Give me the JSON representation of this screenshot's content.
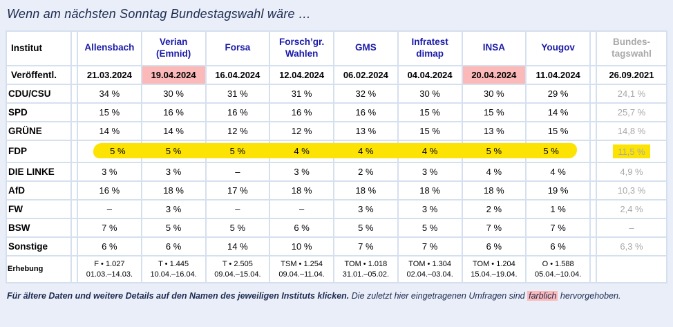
{
  "title": "Wenn am nächsten Sonntag Bundestagswahl wäre …",
  "colors": {
    "page_background": "#e9eef8",
    "institute_link_blue": "#1a1aa8",
    "recent_highlight_pink": "#fcb9b9",
    "marker_yellow": "#fce303",
    "final_column_gray": "#a8a8a8"
  },
  "table": {
    "corner_label": "Institut",
    "institutes": [
      "Allensbach",
      "Verian\n(Emnid)",
      "Forsa",
      "Forsch’gr.\nWahlen",
      "GMS",
      "Infratest\ndimap",
      "INSA",
      "Yougov"
    ],
    "final_header": "Bundes-\ntagswahl",
    "published_label": "Veröffentl.",
    "published": [
      "21.03.2024",
      "19.04.2024",
      "16.04.2024",
      "12.04.2024",
      "06.02.2024",
      "04.04.2024",
      "20.04.2024",
      "11.04.2024"
    ],
    "published_highlight_indexes": [
      1,
      6
    ],
    "published_final": "26.09.2021",
    "rows": [
      {
        "label": "CDU/CSU",
        "values": [
          "34 %",
          "30 %",
          "31 %",
          "31 %",
          "32 %",
          "30 %",
          "30 %",
          "29 %"
        ],
        "final": "24,1 %",
        "highlight": false
      },
      {
        "label": "SPD",
        "values": [
          "15 %",
          "16 %",
          "16 %",
          "16 %",
          "16 %",
          "15 %",
          "15 %",
          "14 %"
        ],
        "final": "25,7 %",
        "highlight": false
      },
      {
        "label": "GRÜNE",
        "values": [
          "14 %",
          "14 %",
          "12 %",
          "12 %",
          "13 %",
          "15 %",
          "13 %",
          "15 %"
        ],
        "final": "14,8 %",
        "highlight": false
      },
      {
        "label": "FDP",
        "values": [
          "5 %",
          "5 %",
          "5 %",
          "4 %",
          "4 %",
          "4 %",
          "5 %",
          "5 %"
        ],
        "final": "11,5 %",
        "highlight": true
      },
      {
        "label": "DIE LINKE",
        "values": [
          "3 %",
          "3 %",
          "–",
          "3 %",
          "2 %",
          "3 %",
          "4 %",
          "4 %"
        ],
        "final": "4,9 %",
        "highlight": false
      },
      {
        "label": "AfD",
        "values": [
          "16 %",
          "18 %",
          "17 %",
          "18 %",
          "18 %",
          "18 %",
          "18 %",
          "19 %"
        ],
        "final": "10,3 %",
        "highlight": false
      },
      {
        "label": "FW",
        "values": [
          "–",
          "3 %",
          "–",
          "–",
          "3 %",
          "3 %",
          "2 %",
          "1 %"
        ],
        "final": "2,4 %",
        "highlight": false
      },
      {
        "label": "BSW",
        "values": [
          "7 %",
          "5 %",
          "5 %",
          "6 %",
          "5 %",
          "5 %",
          "7 %",
          "7 %"
        ],
        "final": "–",
        "highlight": false
      },
      {
        "label": "Sonstige",
        "values": [
          "6 %",
          "6 %",
          "14 %",
          "10 %",
          "7 %",
          "7 %",
          "6 %",
          "6 %"
        ],
        "final": "6,3 %",
        "highlight": false
      }
    ],
    "survey_label": "Erhebung",
    "surveys": [
      "F • 1.027\n01.03.–14.03.",
      "T • 1.445\n10.04.–16.04.",
      "T • 2.505\n09.04.–15.04.",
      "TSM • 1.254\n09.04.–11.04.",
      "TOM • 1.018\n31.01.–05.02.",
      "TOM • 1.304\n02.04.–03.04.",
      "TOM • 1.204\n15.04.–19.04.",
      "O • 1.588\n05.04.–10.04."
    ],
    "survey_final": ""
  },
  "footer": {
    "bold_sentence": "Für ältere Daten und weitere Details auf den Namen des jeweiligen Instituts klicken.",
    "normal_before": "Die zuletzt hier eingetragenen Umfragen sind",
    "highlighted_word": "farblich",
    "normal_after": "hervorgehoben."
  },
  "chart_data": {
    "type": "table",
    "title": "Wenn am nächsten Sonntag Bundestagswahl wäre …",
    "columns": [
      "Institut",
      "Allensbach",
      "Verian (Emnid)",
      "Forsa",
      "Forsch’gr. Wahlen",
      "GMS",
      "Infratest dimap",
      "INSA",
      "Yougov",
      "Bundestagswahl"
    ],
    "published_dates": [
      "21.03.2024",
      "19.04.2024",
      "16.04.2024",
      "12.04.2024",
      "06.02.2024",
      "04.04.2024",
      "20.04.2024",
      "11.04.2024",
      "26.09.2021"
    ],
    "series": [
      {
        "name": "CDU/CSU",
        "values": [
          34,
          30,
          31,
          31,
          32,
          30,
          30,
          29
        ],
        "bundestagswahl": 24.1
      },
      {
        "name": "SPD",
        "values": [
          15,
          16,
          16,
          16,
          16,
          15,
          15,
          14
        ],
        "bundestagswahl": 25.7
      },
      {
        "name": "GRÜNE",
        "values": [
          14,
          14,
          12,
          12,
          13,
          15,
          13,
          15
        ],
        "bundestagswahl": 14.8
      },
      {
        "name": "FDP",
        "values": [
          5,
          5,
          5,
          4,
          4,
          4,
          5,
          5
        ],
        "bundestagswahl": 11.5
      },
      {
        "name": "DIE LINKE",
        "values": [
          3,
          3,
          null,
          3,
          2,
          3,
          4,
          4
        ],
        "bundestagswahl": 4.9
      },
      {
        "name": "AfD",
        "values": [
          16,
          18,
          17,
          18,
          18,
          18,
          18,
          19
        ],
        "bundestagswahl": 10.3
      },
      {
        "name": "FW",
        "values": [
          null,
          3,
          null,
          null,
          3,
          3,
          2,
          1
        ],
        "bundestagswahl": 2.4
      },
      {
        "name": "BSW",
        "values": [
          7,
          5,
          5,
          6,
          5,
          5,
          7,
          7
        ],
        "bundestagswahl": null
      },
      {
        "name": "Sonstige",
        "values": [
          6,
          6,
          14,
          10,
          7,
          7,
          6,
          6
        ],
        "bundestagswahl": 6.3
      }
    ]
  }
}
